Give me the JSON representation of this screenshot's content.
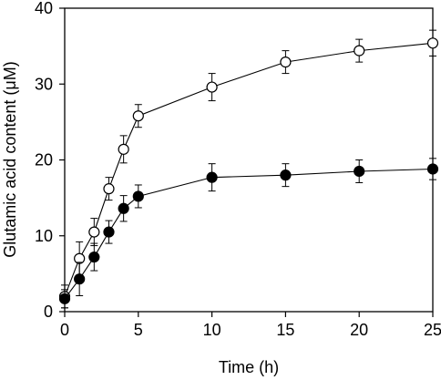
{
  "chart_data": {
    "type": "scatter",
    "title": "",
    "xlabel": "Time (h)",
    "ylabel": "Glutamic acid content (μM)",
    "xlim": [
      0,
      25
    ],
    "ylim": [
      0,
      40
    ],
    "xticks": [
      0,
      5,
      10,
      15,
      20,
      25
    ],
    "yticks": [
      0,
      10,
      20,
      30,
      40
    ],
    "grid": false,
    "legend": "none",
    "series": [
      {
        "marker": "open-circle",
        "color": "#000000",
        "points": [
          {
            "x": 0,
            "y": 2.0,
            "err": 1.5
          },
          {
            "x": 1,
            "y": 7.0,
            "err": 2.2
          },
          {
            "x": 2,
            "y": 10.5,
            "err": 1.8
          },
          {
            "x": 3,
            "y": 16.2,
            "err": 1.5
          },
          {
            "x": 4,
            "y": 21.4,
            "err": 1.8
          },
          {
            "x": 5,
            "y": 25.8,
            "err": 1.5
          },
          {
            "x": 10,
            "y": 29.6,
            "err": 1.8
          },
          {
            "x": 15,
            "y": 32.9,
            "err": 1.5
          },
          {
            "x": 20,
            "y": 34.4,
            "err": 1.5
          },
          {
            "x": 25,
            "y": 35.4,
            "err": 1.7
          }
        ]
      },
      {
        "marker": "filled-circle",
        "color": "#000000",
        "points": [
          {
            "x": 0,
            "y": 1.7,
            "err": 1.2
          },
          {
            "x": 1,
            "y": 4.3,
            "err": 2.2
          },
          {
            "x": 2,
            "y": 7.2,
            "err": 1.8
          },
          {
            "x": 3,
            "y": 10.5,
            "err": 1.5
          },
          {
            "x": 4,
            "y": 13.6,
            "err": 1.7
          },
          {
            "x": 5,
            "y": 15.2,
            "err": 1.5
          },
          {
            "x": 10,
            "y": 17.7,
            "err": 1.8
          },
          {
            "x": 15,
            "y": 18.0,
            "err": 1.5
          },
          {
            "x": 20,
            "y": 18.5,
            "err": 1.5
          },
          {
            "x": 25,
            "y": 18.8,
            "err": 1.4
          }
        ]
      }
    ]
  }
}
